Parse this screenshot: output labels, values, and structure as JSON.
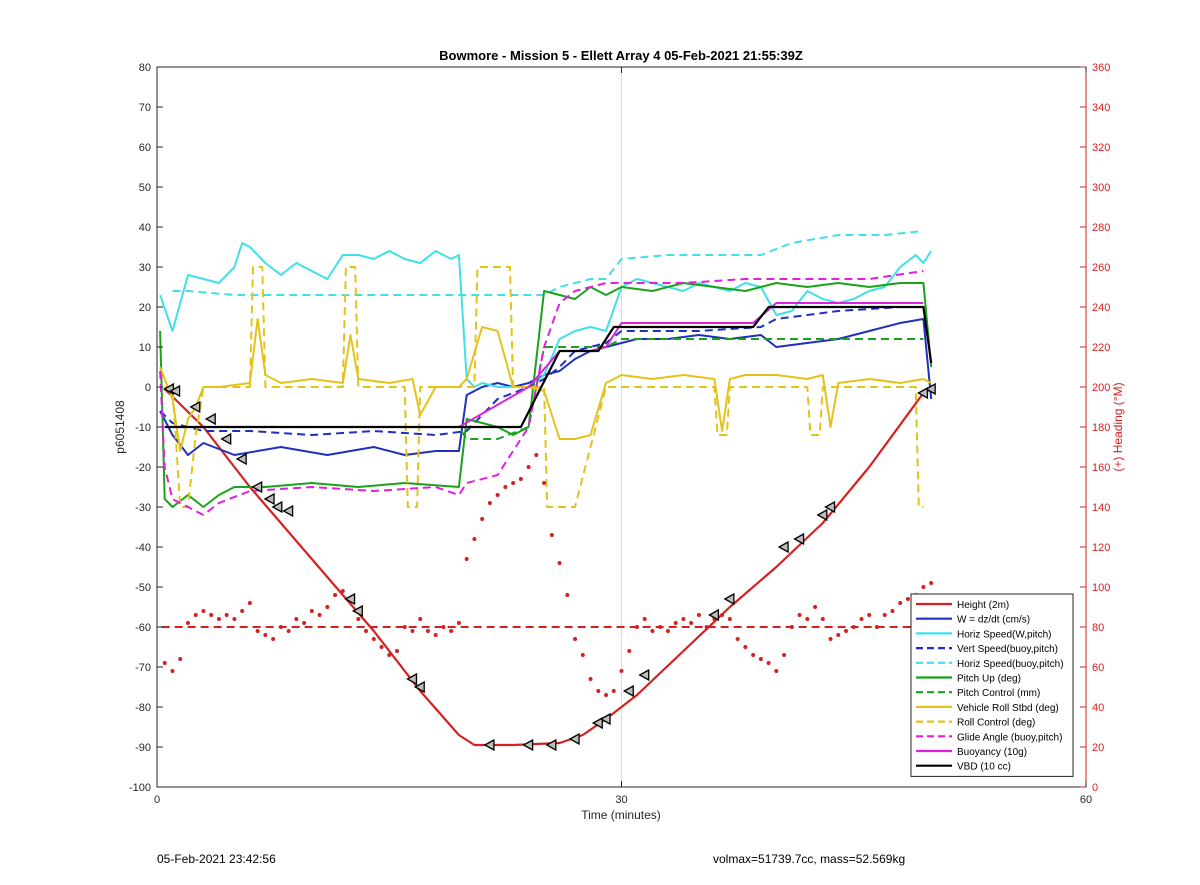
{
  "chart_data": {
    "type": "line",
    "title": "Bowmore - Mission 5 - Ellett Array 4 05-Feb-2021 21:55:39Z",
    "xlabel": "Time (minutes)",
    "ylabel": "p6051408",
    "y2label": "(+) Heading (°M)",
    "xlim": [
      0,
      60
    ],
    "ylim": [
      -100,
      80
    ],
    "y2lim": [
      0,
      360
    ],
    "xticks": [
      "0",
      "30",
      "60"
    ],
    "yticks": [
      "-100",
      "-90",
      "-80",
      "-70",
      "-60",
      "-50",
      "-40",
      "-30",
      "-20",
      "-10",
      "0",
      "10",
      "20",
      "30",
      "40",
      "50",
      "60",
      "70",
      "80"
    ],
    "y2ticks": [
      "0",
      "20",
      "40",
      "60",
      "80",
      "100",
      "120",
      "140",
      "160",
      "180",
      "200",
      "220",
      "240",
      "260",
      "280",
      "300",
      "320",
      "340",
      "360"
    ],
    "grid": "x=30 only",
    "legend_position": "bottom-right",
    "series": [
      {
        "name": "Height (2m)",
        "color": "#d62020",
        "style": "solid",
        "x": [
          0.5,
          3,
          6,
          10,
          14,
          17,
          19.5,
          20.5,
          23,
          26,
          27.5,
          29,
          31,
          34,
          37,
          40,
          43,
          46,
          49.5,
          50
        ],
        "y": [
          -0.5,
          -10,
          -25,
          -43,
          -61,
          -76,
          -87,
          -89.5,
          -89.5,
          -89,
          -87,
          -83,
          -77,
          -66,
          -55,
          -45,
          -34,
          -20,
          -1.5,
          -0.5
        ]
      },
      {
        "name": "W = dz/dt (cm/s)",
        "color": "#1f2fbf",
        "style": "solid",
        "x": [
          0.2,
          1,
          2,
          3,
          5,
          8,
          11,
          14,
          16,
          18,
          19.5,
          20,
          21,
          22,
          23,
          24,
          25,
          26,
          27,
          28,
          29,
          30,
          31,
          33,
          35,
          37,
          39,
          40,
          42,
          44,
          46,
          48,
          49.5,
          50
        ],
        "y": [
          -6,
          -12,
          -17,
          -14,
          -17,
          -15,
          -17,
          -15,
          -17,
          -16,
          -16,
          -2,
          0,
          1,
          0,
          1,
          3,
          4,
          7,
          9,
          10,
          11,
          12,
          12,
          13,
          12,
          13,
          10,
          11,
          12,
          14,
          16,
          17,
          -3
        ]
      },
      {
        "name": "Horiz Speed(W,pitch)",
        "color": "#3fe0e8",
        "style": "solid",
        "x": [
          0.2,
          1,
          2,
          3,
          4,
          5,
          5.5,
          6,
          7,
          8,
          9,
          10,
          11,
          12,
          13,
          14,
          15,
          16,
          17,
          18,
          19,
          19.5,
          20,
          20.5,
          21,
          22,
          23,
          24,
          25,
          26,
          27,
          28,
          29,
          30,
          31,
          32,
          33,
          34,
          35,
          36,
          37,
          38,
          39,
          40,
          41,
          42,
          43,
          44,
          45,
          46,
          47,
          48,
          49,
          49.5,
          50
        ],
        "y": [
          23,
          14,
          28,
          27,
          26,
          30,
          36,
          35,
          31,
          28,
          31,
          29,
          27,
          33,
          33,
          32,
          34,
          32,
          31,
          34,
          32,
          33,
          2,
          0,
          1,
          0,
          0,
          0,
          3,
          12,
          14,
          15,
          14,
          25,
          27,
          26,
          25,
          24,
          26,
          25,
          24,
          26,
          25,
          18,
          19,
          24,
          22,
          21,
          22,
          24,
          25,
          30,
          33,
          31,
          34
        ]
      },
      {
        "name": "Vert Speed(buoy,pitch)",
        "color": "#1f2fbf",
        "style": "dashed",
        "x": [
          0.2,
          1,
          3,
          6,
          10,
          14,
          18,
          20,
          22,
          24,
          25,
          26,
          27,
          28,
          29,
          30,
          35,
          39,
          40,
          44,
          48,
          49.5
        ],
        "y": [
          -6,
          -9,
          -11,
          -11,
          -12,
          -11,
          -12,
          -11,
          -3,
          0,
          2,
          5,
          9,
          10,
          11,
          14,
          14,
          15,
          17,
          19,
          20,
          20
        ]
      },
      {
        "name": "Horiz Speed(buoy,pitch)",
        "color": "#3fe0e8",
        "style": "dashed",
        "x": [
          1,
          2,
          5,
          10,
          15,
          20,
          22,
          25,
          26,
          27,
          28,
          29,
          30,
          33,
          36,
          39,
          41,
          44,
          47,
          49.5
        ],
        "y": [
          24,
          24,
          23,
          23,
          23,
          23,
          23,
          23,
          25,
          26,
          27,
          27,
          32,
          33,
          33,
          33,
          36,
          38,
          38,
          39
        ]
      },
      {
        "name": "Pitch Up (deg)",
        "color": "#1aa31a",
        "style": "solid",
        "x": [
          0.2,
          0.5,
          1,
          2,
          3,
          4,
          5,
          7,
          10,
          13,
          16,
          19.5,
          20,
          22,
          23,
          24,
          25,
          26,
          27,
          28,
          29,
          30,
          32,
          34,
          36,
          38,
          40,
          42,
          44,
          46,
          48,
          49.5,
          50
        ],
        "y": [
          14,
          -28,
          -30,
          -27,
          -30,
          -27,
          -25,
          -25,
          -24,
          -25,
          -24,
          -25,
          -8,
          -10,
          -12,
          -10,
          24,
          23,
          22,
          25,
          23,
          25,
          24,
          26,
          25,
          24,
          26,
          25,
          26,
          25,
          26,
          26,
          5
        ]
      },
      {
        "name": "Pitch Control (mm)",
        "color": "#1aa31a",
        "style": "dashed",
        "x": [
          0.5,
          1,
          5,
          10,
          15,
          19.5,
          20,
          22,
          24,
          25,
          28,
          29,
          30,
          35,
          40,
          45,
          49.5
        ],
        "y": [
          -10,
          -10,
          -10,
          -10,
          -10,
          -10,
          -13,
          -13,
          -10,
          10,
          10,
          10,
          12,
          12,
          12,
          12,
          12
        ]
      },
      {
        "name": "Vehicle Roll Stbd (deg)",
        "color": "#e4c21a",
        "style": "solid",
        "x": [
          0.2,
          1,
          1.5,
          2,
          2.5,
          3,
          4,
          6,
          6.5,
          7,
          8,
          10,
          12,
          12.5,
          13,
          15,
          16.5,
          17,
          18,
          19.5,
          20,
          21,
          22,
          23,
          24,
          25,
          26,
          27,
          28,
          29,
          30,
          32,
          34,
          36,
          36.5,
          37,
          38,
          40,
          42,
          43,
          43.5,
          44,
          46,
          48,
          49.5,
          50
        ],
        "y": [
          5,
          -3,
          -16,
          -8,
          -5,
          0,
          0,
          1,
          17,
          3,
          1,
          2,
          1,
          13,
          2,
          1,
          2,
          -7,
          0,
          0,
          2,
          15,
          14,
          0,
          0,
          -1,
          -13,
          -13,
          -12,
          1,
          3,
          2,
          3,
          2,
          -11,
          2,
          3,
          3,
          2,
          3,
          -10,
          1,
          2,
          1,
          2,
          1
        ]
      },
      {
        "name": "Roll Control (deg)",
        "color": "#e4c21a",
        "style": "dashed",
        "x": [
          0.5,
          1,
          1.2,
          1.5,
          2,
          2.5,
          3,
          6,
          6.2,
          6.8,
          7,
          12,
          12.2,
          12.8,
          13,
          16,
          16.2,
          16.8,
          17,
          20.5,
          20.7,
          22.8,
          23,
          25,
          25.2,
          26.8,
          27,
          29,
          29.2,
          32.8,
          33,
          36,
          36.2,
          36.8,
          37,
          42,
          42.2,
          42.8,
          43,
          49,
          49.2,
          49.5
        ],
        "y": [
          0,
          0,
          -12,
          -30,
          -30,
          -12,
          0,
          0,
          30,
          30,
          0,
          0,
          30,
          30,
          0,
          0,
          -30,
          -30,
          0,
          0,
          30,
          30,
          0,
          0,
          -30,
          -30,
          -30,
          0,
          0,
          0,
          0,
          0,
          -12,
          -12,
          0,
          0,
          -12,
          -12,
          0,
          0,
          -30,
          -30
        ]
      },
      {
        "name": "Glide Angle (buoy,pitch)",
        "color": "#e020e0",
        "style": "dashed",
        "x": [
          0.2,
          0.5,
          1,
          2,
          3,
          4,
          6,
          10,
          14,
          18,
          19.5,
          20,
          22,
          24,
          25,
          26,
          27,
          28,
          29,
          30,
          34,
          38,
          42,
          46,
          49.5
        ],
        "y": [
          4,
          -20,
          -28,
          -30,
          -32,
          -29,
          -26,
          -25,
          -26,
          -25,
          -27,
          -24,
          -22,
          -10,
          10,
          21,
          24,
          25,
          26,
          26,
          26,
          27,
          27,
          27,
          29
        ]
      },
      {
        "name": "Buoyancy (10g)",
        "color": "#e020e0",
        "style": "solid",
        "x": [
          19.5,
          24,
          26,
          28,
          29,
          30,
          38.5,
          40,
          49.5
        ],
        "y": [
          -10,
          0,
          9,
          9,
          10,
          16,
          16,
          21,
          21
        ]
      },
      {
        "name": "VBD (10 cc)",
        "color": "#000000",
        "style": "solid",
        "x": [
          0.5,
          5,
          10,
          15,
          20,
          23.5,
          26,
          28.5,
          29.5,
          38.5,
          39.5,
          49.5,
          50
        ],
        "y": [
          -10,
          -10,
          -10,
          -10,
          -10,
          -10,
          9,
          9,
          15,
          15,
          20,
          20,
          6
        ]
      }
    ],
    "heading": {
      "name": "(+) Heading (°M)",
      "color": "#d62020",
      "points_x": [
        0.5,
        1,
        1.5,
        2,
        2.5,
        3,
        3.5,
        4,
        4.5,
        5,
        5.5,
        6,
        6.5,
        7,
        7.5,
        8,
        8.5,
        9,
        9.5,
        10,
        10.5,
        11,
        11.5,
        12,
        12.5,
        13,
        13.5,
        14,
        14.5,
        15,
        15.5,
        16,
        16.5,
        17,
        17.5,
        18,
        18.5,
        19,
        19.5,
        20,
        20.5,
        21,
        21.5,
        22,
        22.5,
        23,
        23.5,
        24,
        24.5,
        25,
        25.5,
        26,
        26.5,
        27,
        27.5,
        28,
        28.5,
        29,
        29.5,
        30,
        30.5,
        31,
        31.5,
        32,
        32.5,
        33,
        33.5,
        34,
        34.5,
        35,
        35.5,
        36,
        36.5,
        37,
        37.5,
        38,
        38.5,
        39,
        39.5,
        40,
        40.5,
        41,
        41.5,
        42,
        42.5,
        43,
        43.5,
        44,
        44.5,
        45,
        45.5,
        46,
        46.5,
        47,
        47.5,
        48,
        48.5,
        49,
        49.5,
        50
      ],
      "points_y": [
        62,
        58,
        64,
        82,
        86,
        88,
        86,
        84,
        86,
        84,
        88,
        92,
        78,
        76,
        74,
        80,
        78,
        84,
        82,
        88,
        86,
        90,
        96,
        98,
        94,
        84,
        78,
        74,
        70,
        66,
        68,
        80,
        78,
        84,
        78,
        76,
        80,
        78,
        82,
        114,
        124,
        134,
        142,
        146,
        150,
        152,
        154,
        160,
        166,
        152,
        126,
        112,
        96,
        74,
        66,
        54,
        48,
        46,
        48,
        58,
        68,
        80,
        84,
        78,
        80,
        78,
        82,
        84,
        82,
        86,
        80,
        84,
        86,
        84,
        74,
        70,
        66,
        64,
        62,
        58,
        66,
        80,
        86,
        84,
        90,
        84,
        74,
        76,
        78,
        80,
        84,
        86,
        80,
        86,
        88,
        92,
        94,
        96,
        100,
        102
      ],
      "reference": 80
    },
    "markers": {
      "x": [
        0.8,
        1.2,
        2.5,
        3.5,
        4.5,
        5.5,
        6.5,
        7.3,
        7.8,
        8.5,
        12.5,
        13,
        16.5,
        17,
        21.5,
        24,
        25.5,
        27,
        28.5,
        29,
        30.5,
        31.5,
        36,
        37,
        40.5,
        41.5,
        43,
        43.5,
        49.5,
        50
      ],
      "y": [
        -0.5,
        -1,
        -5,
        -8,
        -13,
        -18,
        -25,
        -28,
        -30,
        -31,
        -53,
        -56,
        -73,
        -75,
        -89.5,
        -89.5,
        -89.5,
        -88,
        -84,
        -83,
        -76,
        -72,
        -57,
        -53,
        -40,
        -38,
        -32,
        -30,
        -1.5,
        -0.5
      ]
    }
  },
  "footer": {
    "left": "05-Feb-2021 23:42:56",
    "right": "volmax=51739.7cc, mass=52.569kg"
  }
}
